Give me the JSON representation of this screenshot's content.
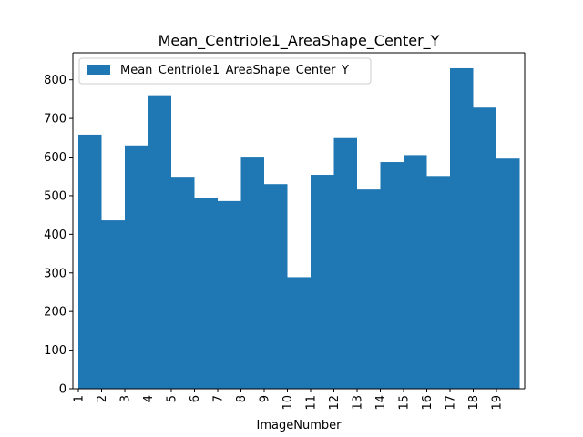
{
  "chart_data": {
    "type": "bar",
    "title": "Mean_Centriole1_AreaShape_Center_Y",
    "xlabel": "ImageNumber",
    "ylabel": "",
    "categories": [
      "1",
      "2",
      "3",
      "4",
      "5",
      "6",
      "7",
      "8",
      "9",
      "10",
      "11",
      "12",
      "13",
      "14",
      "15",
      "16",
      "17",
      "18",
      "19"
    ],
    "series": [
      {
        "name": "Mean_Centriole1_AreaShape_Center_Y",
        "values": [
          658,
          436,
          630,
          760,
          549,
          495,
          486,
          601,
          530,
          289,
          554,
          649,
          516,
          587,
          605,
          551,
          830,
          728,
          596
        ]
      }
    ],
    "ylim": [
      0,
      870
    ],
    "yticks": [
      0,
      100,
      200,
      300,
      400,
      500,
      600,
      700,
      800
    ],
    "grid": false,
    "legend_position": "top-left",
    "colors": {
      "bar": "#1f77b4"
    }
  }
}
